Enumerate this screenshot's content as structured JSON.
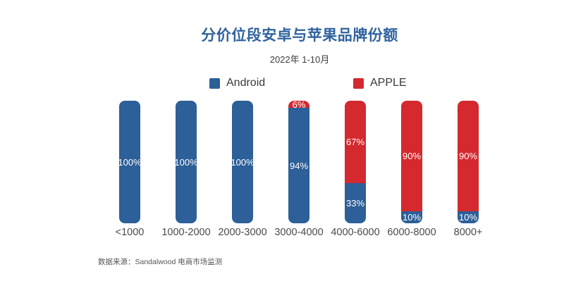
{
  "page": {
    "title": "分价位段安卓与苹果品牌份额",
    "subtitle": "2022年 1-10月",
    "footer": "数据来源：Sandalwood 电商市场监测"
  },
  "legend": {
    "items": [
      {
        "label": "Android",
        "color": "#2d5f98"
      },
      {
        "label": "APPLE",
        "color": "#d3292f"
      }
    ]
  },
  "colors": {
    "android_blue": "#2d5f98",
    "apple_red": "#d3292f",
    "title_blue": "#30639f",
    "value_label_white": "#ffffff"
  },
  "chart_data": {
    "type": "bar",
    "stacked": true,
    "orientation": "vertical",
    "title": "分价位段安卓与苹果品牌份额",
    "subtitle": "2022年 1-10月",
    "categories": [
      "<1000",
      "1000-2000",
      "2000-3000",
      "3000-4000",
      "4000-6000",
      "6000-8000",
      "8000+"
    ],
    "series": [
      {
        "name": "Android",
        "color": "#2d5f98",
        "values": [
          100,
          100,
          100,
          94,
          33,
          10,
          10
        ]
      },
      {
        "name": "APPLE",
        "color": "#d3292f",
        "values": [
          0,
          0,
          0,
          6,
          67,
          90,
          90
        ]
      }
    ],
    "value_suffix": "%",
    "ylim": [
      0,
      100
    ],
    "grid": false,
    "legend_position": "top",
    "source": "数据来源：Sandalwood 电商市场监测"
  }
}
